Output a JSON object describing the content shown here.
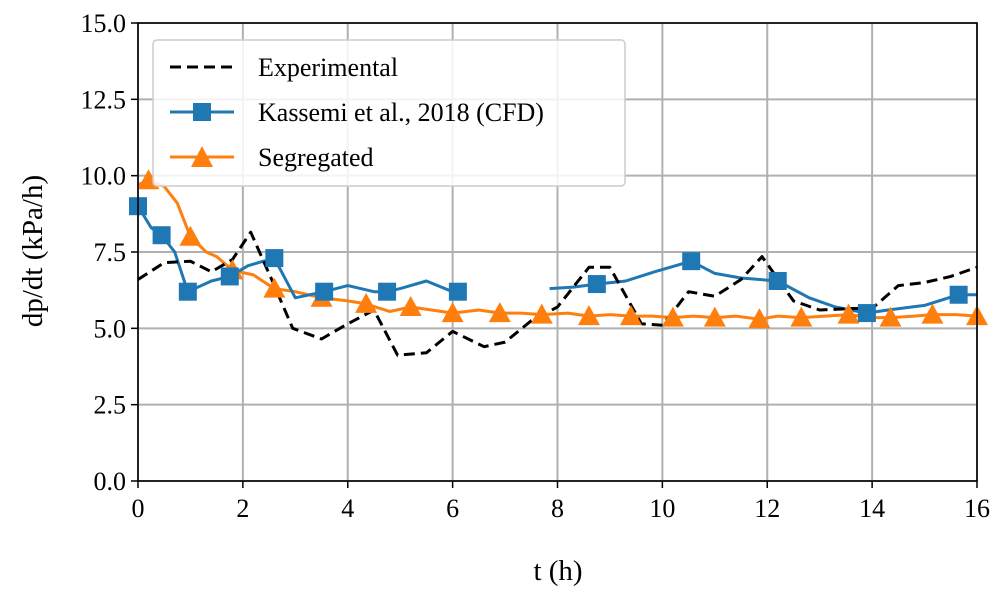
{
  "chart_data": {
    "type": "line",
    "title": "",
    "xlabel": "t (h)",
    "ylabel": "dp/dt (kPa/h)",
    "xlim": [
      0,
      16
    ],
    "ylim": [
      0,
      15
    ],
    "xticks": [
      "0",
      "2",
      "4",
      "6",
      "8",
      "10",
      "12",
      "14",
      "16"
    ],
    "yticks": [
      "0.0",
      "2.5",
      "5.0",
      "7.5",
      "10.0",
      "12.5",
      "15.0"
    ],
    "grid": true,
    "legend_position": "top-left",
    "series": [
      {
        "name": "Experimental",
        "color": "#000000",
        "style": "dashed",
        "marker": "none",
        "segments": [
          [
            [
              0,
              6.6
            ],
            [
              0.5,
              7.15
            ],
            [
              1.0,
              7.2
            ],
            [
              1.4,
              6.85
            ],
            [
              1.8,
              7.25
            ],
            [
              2.15,
              8.15
            ],
            [
              2.55,
              6.6
            ],
            [
              2.95,
              5.0
            ],
            [
              3.5,
              4.65
            ],
            [
              4.0,
              5.15
            ],
            [
              4.5,
              5.6
            ],
            [
              4.95,
              4.12
            ],
            [
              5.5,
              4.2
            ],
            [
              6.0,
              4.9
            ],
            [
              6.6,
              4.4
            ],
            [
              7.0,
              4.55
            ],
            [
              7.5,
              5.25
            ],
            [
              8.0,
              5.7
            ],
            [
              8.6,
              7.0
            ],
            [
              9.0,
              7.0
            ],
            [
              9.6,
              5.15
            ],
            [
              10.0,
              5.1
            ],
            [
              10.5,
              6.2
            ],
            [
              11.0,
              6.05
            ],
            [
              11.5,
              6.6
            ],
            [
              11.9,
              7.35
            ],
            [
              12.5,
              5.9
            ],
            [
              13.0,
              5.6
            ],
            [
              13.6,
              5.65
            ],
            [
              14.0,
              5.65
            ],
            [
              14.5,
              6.4
            ],
            [
              15.0,
              6.5
            ],
            [
              15.5,
              6.7
            ],
            [
              16.0,
              7.0
            ]
          ]
        ]
      },
      {
        "name": "Kassemi et al., 2018 (CFD)",
        "color": "#1f77b4",
        "style": "solid",
        "marker": "square",
        "segments": [
          [
            [
              0,
              9.0
            ],
            [
              0.25,
              8.3
            ],
            [
              0.45,
              8.05
            ],
            [
              0.7,
              7.5
            ],
            [
              0.95,
              6.2
            ],
            [
              1.4,
              6.55
            ],
            [
              1.75,
              6.7
            ],
            [
              2.1,
              7.05
            ],
            [
              2.6,
              7.3
            ],
            [
              3.0,
              6.0
            ],
            [
              3.55,
              6.2
            ],
            [
              4.0,
              6.4
            ],
            [
              4.5,
              6.2
            ],
            [
              4.75,
              6.2
            ],
            [
              5.0,
              6.3
            ],
            [
              5.5,
              6.55
            ],
            [
              6.0,
              6.2
            ],
            [
              6.1,
              6.2
            ]
          ],
          [
            [
              7.85,
              6.3
            ],
            [
              8.3,
              6.35
            ],
            [
              8.75,
              6.45
            ],
            [
              9.3,
              6.55
            ],
            [
              9.85,
              6.85
            ],
            [
              10.55,
              7.2
            ],
            [
              11.0,
              6.8
            ],
            [
              11.5,
              6.65
            ],
            [
              12.2,
              6.55
            ],
            [
              12.8,
              6.0
            ],
            [
              13.3,
              5.7
            ],
            [
              13.9,
              5.5
            ],
            [
              14.3,
              5.6
            ],
            [
              15.0,
              5.75
            ],
            [
              15.65,
              6.1
            ],
            [
              16.0,
              6.1
            ]
          ]
        ],
        "marker_points": [
          [
            0,
            9.0
          ],
          [
            0.45,
            8.05
          ],
          [
            0.95,
            6.2
          ],
          [
            1.75,
            6.7
          ],
          [
            2.6,
            7.3
          ],
          [
            3.55,
            6.2
          ],
          [
            4.75,
            6.2
          ],
          [
            6.1,
            6.2
          ],
          [
            8.75,
            6.45
          ],
          [
            10.55,
            7.2
          ],
          [
            12.2,
            6.55
          ],
          [
            13.9,
            5.5
          ],
          [
            15.65,
            6.1
          ]
        ]
      },
      {
        "name": "Segregated",
        "color": "#ff7f0e",
        "style": "solid",
        "marker": "triangle",
        "segments": [
          [
            [
              0,
              9.7
            ],
            [
              0.2,
              9.85
            ],
            [
              0.5,
              9.65
            ],
            [
              0.75,
              9.1
            ],
            [
              1.0,
              8.0
            ],
            [
              1.3,
              7.5
            ],
            [
              1.5,
              7.35
            ],
            [
              1.8,
              6.9
            ],
            [
              2.2,
              6.75
            ],
            [
              2.6,
              6.3
            ],
            [
              3.0,
              6.2
            ],
            [
              3.5,
              6.0
            ],
            [
              4.0,
              5.9
            ],
            [
              4.35,
              5.8
            ],
            [
              4.8,
              5.55
            ],
            [
              5.2,
              5.7
            ],
            [
              5.6,
              5.6
            ],
            [
              6.0,
              5.5
            ],
            [
              6.5,
              5.6
            ],
            [
              6.9,
              5.5
            ],
            [
              7.3,
              5.5
            ],
            [
              7.7,
              5.45
            ],
            [
              8.2,
              5.5
            ],
            [
              8.6,
              5.4
            ],
            [
              9.0,
              5.45
            ],
            [
              9.4,
              5.4
            ],
            [
              9.8,
              5.4
            ],
            [
              10.2,
              5.35
            ],
            [
              10.6,
              5.4
            ],
            [
              11.0,
              5.35
            ],
            [
              11.4,
              5.4
            ],
            [
              11.85,
              5.3
            ],
            [
              12.2,
              5.4
            ],
            [
              12.65,
              5.35
            ],
            [
              13.1,
              5.4
            ],
            [
              13.55,
              5.45
            ],
            [
              14.0,
              5.35
            ],
            [
              14.35,
              5.35
            ],
            [
              14.8,
              5.4
            ],
            [
              15.15,
              5.45
            ],
            [
              15.6,
              5.45
            ],
            [
              16.0,
              5.4
            ]
          ]
        ],
        "marker_points": [
          [
            0.2,
            9.85
          ],
          [
            1.0,
            8.0
          ],
          [
            1.8,
            6.9
          ],
          [
            2.6,
            6.3
          ],
          [
            3.5,
            6.0
          ],
          [
            4.35,
            5.8
          ],
          [
            5.2,
            5.7
          ],
          [
            6.0,
            5.5
          ],
          [
            6.9,
            5.5
          ],
          [
            7.7,
            5.45
          ],
          [
            8.6,
            5.4
          ],
          [
            9.4,
            5.4
          ],
          [
            10.2,
            5.35
          ],
          [
            11.0,
            5.35
          ],
          [
            11.85,
            5.3
          ],
          [
            12.65,
            5.35
          ],
          [
            13.55,
            5.45
          ],
          [
            14.35,
            5.35
          ],
          [
            15.15,
            5.45
          ],
          [
            16.0,
            5.4
          ]
        ]
      }
    ]
  }
}
